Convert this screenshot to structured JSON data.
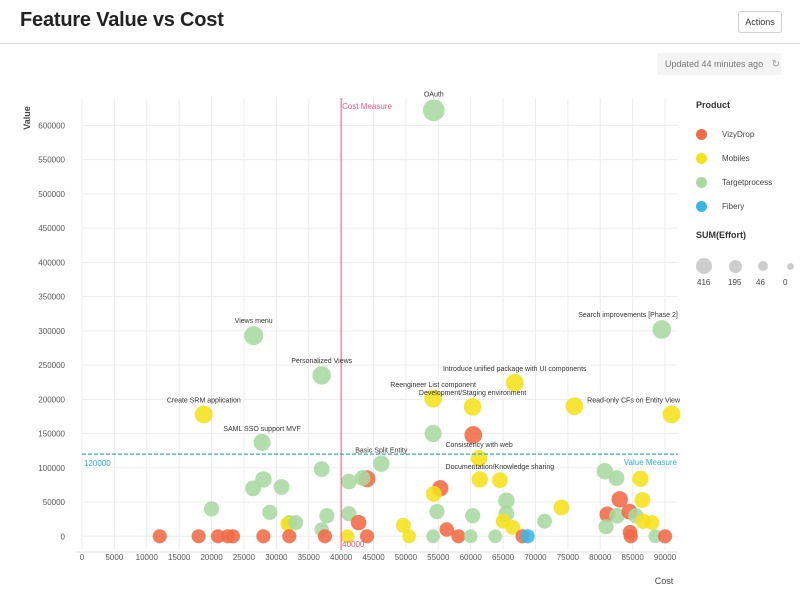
{
  "header": {
    "title": "Feature Value vs Cost",
    "actions_label": "Actions"
  },
  "status": {
    "updated_text": "Updated 44 minutes ago",
    "refresh_icon": "refresh-icon"
  },
  "legend": {
    "product_title": "Product",
    "products": [
      {
        "name": "VizyDrop",
        "color": "#f06a45"
      },
      {
        "name": "Mobiles",
        "color": "#f5e11a"
      },
      {
        "name": "Targetprocess",
        "color": "#a8d8a0"
      },
      {
        "name": "Fibery",
        "color": "#38b6e6"
      }
    ],
    "size_title": "SUM(Effort)",
    "sizes": [
      "416",
      "195",
      "46",
      "0"
    ]
  },
  "chart_data": {
    "type": "scatter",
    "xlabel": "Cost",
    "ylabel": "Value",
    "xlim": [
      0,
      92000
    ],
    "ylim": [
      -20000,
      640000
    ],
    "x_ticks": [
      0,
      5000,
      10000,
      15000,
      20000,
      25000,
      30000,
      35000,
      40000,
      45000,
      50000,
      55000,
      60000,
      65000,
      70000,
      75000,
      80000,
      85000,
      90000
    ],
    "y_ticks": [
      0,
      50000,
      100000,
      150000,
      200000,
      250000,
      300000,
      350000,
      400000,
      450000,
      500000,
      550000,
      600000
    ],
    "grid": true,
    "reference_lines": [
      {
        "axis": "x",
        "value": 40000,
        "label": "Cost Measure",
        "value_label": "40000",
        "color": "#f0557a"
      },
      {
        "axis": "y",
        "value": 120000,
        "label": "Value Measure",
        "value_label": "120000",
        "color": "#28b3c4"
      }
    ],
    "series_colors": {
      "VizyDrop": "#f06a45",
      "Mobiles": "#f5e11a",
      "Targetprocess": "#a8d8a0",
      "Fibery": "#38b6e6"
    },
    "points": [
      {
        "x": 54300,
        "y": 622000,
        "product": "Targetprocess",
        "effort": 400,
        "label": "OAuth"
      },
      {
        "x": 26500,
        "y": 293000,
        "product": "Targetprocess",
        "effort": 260,
        "label": "Views menu"
      },
      {
        "x": 89500,
        "y": 302000,
        "product": "Targetprocess",
        "effort": 240,
        "label": "Search improvements [Phase 2]"
      },
      {
        "x": 37000,
        "y": 235000,
        "product": "Targetprocess",
        "effort": 230,
        "label": "Personalized Views"
      },
      {
        "x": 66800,
        "y": 224000,
        "product": "Mobiles",
        "effort": 210,
        "label": "Introduce unified package with UI components"
      },
      {
        "x": 54200,
        "y": 201000,
        "product": "Mobiles",
        "effort": 200,
        "label": "Reengineer List component"
      },
      {
        "x": 60300,
        "y": 189000,
        "product": "Mobiles",
        "effort": 200,
        "label": "Development/Staging environment"
      },
      {
        "x": 76000,
        "y": 190000,
        "product": "Mobiles",
        "effort": 200,
        "label": ""
      },
      {
        "x": 18800,
        "y": 178000,
        "product": "Mobiles",
        "effort": 210,
        "label": "Create SRM application"
      },
      {
        "x": 91000,
        "y": 178000,
        "product": "Mobiles",
        "effort": 210,
        "label": "Read-only CFs on Entity View"
      },
      {
        "x": 60400,
        "y": 148000,
        "product": "VizyDrop",
        "effort": 200,
        "label": ""
      },
      {
        "x": 54200,
        "y": 150000,
        "product": "Targetprocess",
        "effort": 180,
        "label": ""
      },
      {
        "x": 27800,
        "y": 137000,
        "product": "Targetprocess",
        "effort": 180,
        "label": "SAML SSO support MVF"
      },
      {
        "x": 61300,
        "y": 114000,
        "product": "Mobiles",
        "effort": 150,
        "label": "Consistency with web"
      },
      {
        "x": 46200,
        "y": 106000,
        "product": "Targetprocess",
        "effort": 150,
        "label": "Basic Split Entity"
      },
      {
        "x": 37000,
        "y": 98000,
        "product": "Targetprocess",
        "effort": 130,
        "label": ""
      },
      {
        "x": 64500,
        "y": 82000,
        "product": "Mobiles",
        "effort": 130,
        "label": "Documentation/Knowledge sharing"
      },
      {
        "x": 44000,
        "y": 84000,
        "product": "VizyDrop",
        "effort": 170,
        "label": ""
      },
      {
        "x": 43300,
        "y": 85000,
        "product": "Targetprocess",
        "effort": 130,
        "label": ""
      },
      {
        "x": 41200,
        "y": 80000,
        "product": "Targetprocess",
        "effort": 130,
        "label": ""
      },
      {
        "x": 28000,
        "y": 83000,
        "product": "Targetprocess",
        "effort": 150,
        "label": ""
      },
      {
        "x": 61400,
        "y": 83000,
        "product": "Mobiles",
        "effort": 150,
        "label": ""
      },
      {
        "x": 80700,
        "y": 95000,
        "product": "Targetprocess",
        "effort": 150,
        "label": ""
      },
      {
        "x": 82500,
        "y": 85000,
        "product": "Targetprocess",
        "effort": 130,
        "label": ""
      },
      {
        "x": 86200,
        "y": 84000,
        "product": "Mobiles",
        "effort": 150,
        "label": ""
      },
      {
        "x": 26400,
        "y": 70000,
        "product": "Targetprocess",
        "effort": 130,
        "label": ""
      },
      {
        "x": 30800,
        "y": 72000,
        "product": "Targetprocess",
        "effort": 130,
        "label": ""
      },
      {
        "x": 55300,
        "y": 70000,
        "product": "VizyDrop",
        "effort": 150,
        "label": ""
      },
      {
        "x": 54300,
        "y": 62000,
        "product": "Mobiles",
        "effort": 130,
        "label": ""
      },
      {
        "x": 65500,
        "y": 52000,
        "product": "Targetprocess",
        "effort": 150,
        "label": ""
      },
      {
        "x": 83000,
        "y": 54000,
        "product": "VizyDrop",
        "effort": 150,
        "label": ""
      },
      {
        "x": 86500,
        "y": 53000,
        "product": "Mobiles",
        "effort": 130,
        "label": ""
      },
      {
        "x": 74000,
        "y": 42000,
        "product": "Mobiles",
        "effort": 130,
        "label": ""
      },
      {
        "x": 20000,
        "y": 40000,
        "product": "Targetprocess",
        "effort": 110,
        "label": ""
      },
      {
        "x": 29000,
        "y": 35000,
        "product": "Targetprocess",
        "effort": 110,
        "label": ""
      },
      {
        "x": 37800,
        "y": 30000,
        "product": "Targetprocess",
        "effort": 110,
        "label": ""
      },
      {
        "x": 41200,
        "y": 33000,
        "product": "Targetprocess",
        "effort": 110,
        "label": ""
      },
      {
        "x": 54800,
        "y": 36000,
        "product": "Targetprocess",
        "effort": 110,
        "label": ""
      },
      {
        "x": 60300,
        "y": 30000,
        "product": "Targetprocess",
        "effort": 110,
        "label": ""
      },
      {
        "x": 65500,
        "y": 33000,
        "product": "Targetprocess",
        "effort": 130,
        "label": ""
      },
      {
        "x": 81100,
        "y": 32000,
        "product": "VizyDrop",
        "effort": 130,
        "label": ""
      },
      {
        "x": 82600,
        "y": 30000,
        "product": "Targetprocess",
        "effort": 130,
        "label": ""
      },
      {
        "x": 84500,
        "y": 36000,
        "product": "VizyDrop",
        "effort": 130,
        "label": ""
      },
      {
        "x": 85500,
        "y": 30000,
        "product": "Targetprocess",
        "effort": 110,
        "label": ""
      },
      {
        "x": 32000,
        "y": 20000,
        "product": "Targetprocess",
        "effort": 100,
        "label": ""
      },
      {
        "x": 31800,
        "y": 18000,
        "product": "Mobiles",
        "effort": 110,
        "label": ""
      },
      {
        "x": 33000,
        "y": 20000,
        "product": "Targetprocess",
        "effort": 100,
        "label": ""
      },
      {
        "x": 42700,
        "y": 20000,
        "product": "VizyDrop",
        "effort": 120,
        "label": ""
      },
      {
        "x": 49600,
        "y": 16000,
        "product": "Mobiles",
        "effort": 100,
        "label": ""
      },
      {
        "x": 65000,
        "y": 22000,
        "product": "Mobiles",
        "effort": 100,
        "label": ""
      },
      {
        "x": 66500,
        "y": 13000,
        "product": "Mobiles",
        "effort": 100,
        "label": ""
      },
      {
        "x": 71400,
        "y": 22000,
        "product": "Targetprocess",
        "effort": 100,
        "label": ""
      },
      {
        "x": 80900,
        "y": 14000,
        "product": "Targetprocess",
        "effort": 110,
        "label": ""
      },
      {
        "x": 86600,
        "y": 22000,
        "product": "Mobiles",
        "effort": 110,
        "label": ""
      },
      {
        "x": 88000,
        "y": 20000,
        "product": "Mobiles",
        "effort": 100,
        "label": ""
      },
      {
        "x": 37000,
        "y": 10000,
        "product": "Targetprocess",
        "effort": 90,
        "label": ""
      },
      {
        "x": 56300,
        "y": 10000,
        "product": "VizyDrop",
        "effort": 90,
        "label": ""
      },
      {
        "x": 84600,
        "y": 6000,
        "product": "VizyDrop",
        "effort": 90,
        "label": ""
      },
      {
        "x": 12000,
        "y": 0,
        "product": "VizyDrop",
        "effort": 80,
        "label": ""
      },
      {
        "x": 18000,
        "y": 0,
        "product": "VizyDrop",
        "effort": 80,
        "label": ""
      },
      {
        "x": 21000,
        "y": 0,
        "product": "VizyDrop",
        "effort": 80,
        "label": ""
      },
      {
        "x": 22500,
        "y": 0,
        "product": "VizyDrop",
        "effort": 80,
        "label": ""
      },
      {
        "x": 23300,
        "y": 0,
        "product": "VizyDrop",
        "effort": 80,
        "label": ""
      },
      {
        "x": 28000,
        "y": 0,
        "product": "VizyDrop",
        "effort": 80,
        "label": ""
      },
      {
        "x": 32000,
        "y": 0,
        "product": "VizyDrop",
        "effort": 80,
        "label": ""
      },
      {
        "x": 37500,
        "y": 0,
        "product": "VizyDrop",
        "effort": 80,
        "label": ""
      },
      {
        "x": 41000,
        "y": 0,
        "product": "Mobiles",
        "effort": 70,
        "label": ""
      },
      {
        "x": 44000,
        "y": 0,
        "product": "VizyDrop",
        "effort": 80,
        "label": ""
      },
      {
        "x": 50500,
        "y": 0,
        "product": "Mobiles",
        "effort": 70,
        "label": ""
      },
      {
        "x": 54200,
        "y": 0,
        "product": "Targetprocess",
        "effort": 70,
        "label": ""
      },
      {
        "x": 58100,
        "y": 0,
        "product": "VizyDrop",
        "effort": 80,
        "label": ""
      },
      {
        "x": 60000,
        "y": 0,
        "product": "Targetprocess",
        "effort": 70,
        "label": ""
      },
      {
        "x": 63800,
        "y": 0,
        "product": "Targetprocess",
        "effort": 70,
        "label": ""
      },
      {
        "x": 68000,
        "y": 0,
        "product": "VizyDrop",
        "effort": 80,
        "label": ""
      },
      {
        "x": 68800,
        "y": 0,
        "product": "Fibery",
        "effort": 80,
        "label": ""
      },
      {
        "x": 84700,
        "y": 0,
        "product": "VizyDrop",
        "effort": 80,
        "label": ""
      },
      {
        "x": 88500,
        "y": 0,
        "product": "Targetprocess",
        "effort": 70,
        "label": ""
      },
      {
        "x": 90000,
        "y": 0,
        "product": "VizyDrop",
        "effort": 80,
        "label": ""
      }
    ]
  }
}
